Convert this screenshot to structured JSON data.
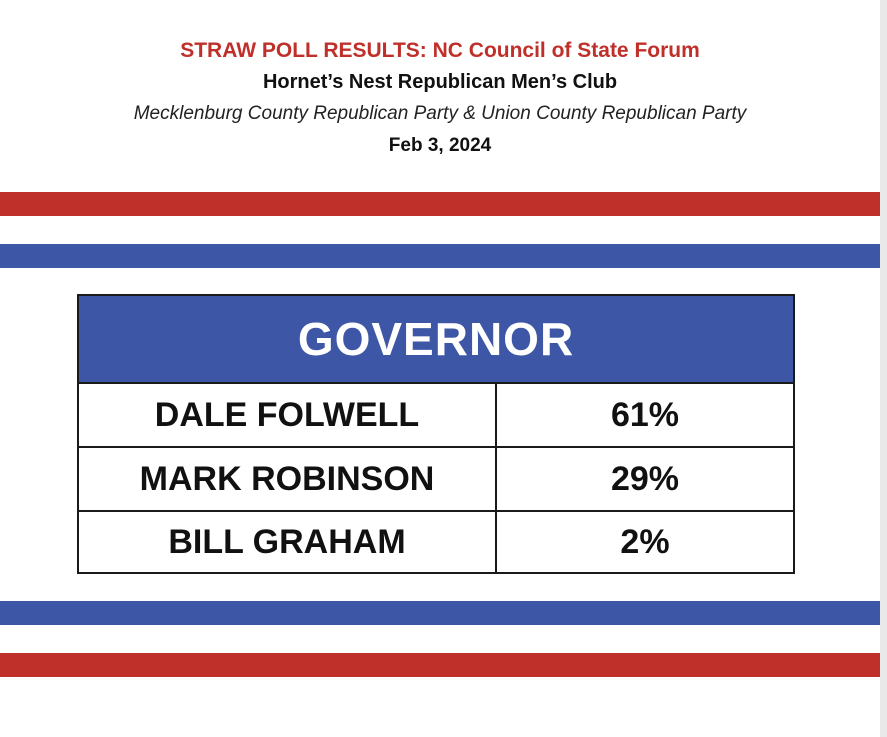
{
  "header": {
    "title": "STRAW POLL RESULTS: NC Council of State Forum",
    "subtitle": "Hornet’s Nest Republican Men’s Club",
    "organizations": "Mecklenburg County Republican Party & Union County Republican Party",
    "date": "Feb 3, 2024"
  },
  "table": {
    "heading": "GOVERNOR",
    "rows": [
      {
        "candidate": "DALE FOLWELL",
        "percent": "61%"
      },
      {
        "candidate": "MARK ROBINSON",
        "percent": "29%"
      },
      {
        "candidate": "BILL GRAHAM",
        "percent": "2%"
      }
    ]
  },
  "colors": {
    "red": "#c0302a",
    "blue": "#3d56a6"
  }
}
